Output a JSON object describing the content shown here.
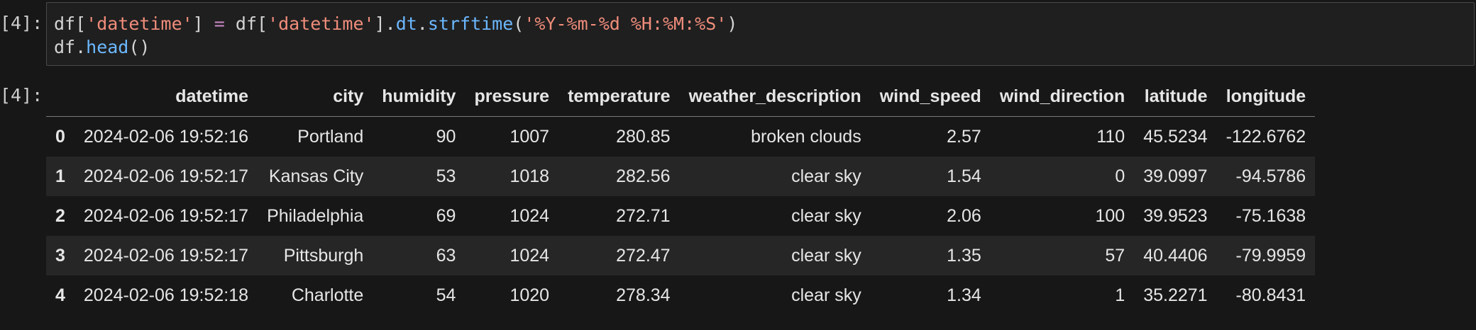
{
  "cell": {
    "input_prompt": "[4]:",
    "output_prompt": "[4]:",
    "code_line1": {
      "t1": "df[",
      "t2": "'datetime'",
      "t3": "] ",
      "t4": "=",
      "t5": " df[",
      "t6": "'datetime'",
      "t7": "].",
      "t8": "dt",
      "t9": ".",
      "t10": "strftime",
      "t11": "(",
      "t12": "'%Y-%m-%d %H:%M:%S'",
      "t13": ")"
    },
    "code_line2": {
      "t1": "df.",
      "t2": "head",
      "t3": "()"
    }
  },
  "table": {
    "columns": [
      "",
      "datetime",
      "city",
      "humidity",
      "pressure",
      "temperature",
      "weather_description",
      "wind_speed",
      "wind_direction",
      "latitude",
      "longitude"
    ],
    "rows": [
      [
        "0",
        "2024-02-06 19:52:16",
        "Portland",
        "90",
        "1007",
        "280.85",
        "broken clouds",
        "2.57",
        "110",
        "45.5234",
        "-122.6762"
      ],
      [
        "1",
        "2024-02-06 19:52:17",
        "Kansas City",
        "53",
        "1018",
        "282.56",
        "clear sky",
        "1.54",
        "0",
        "39.0997",
        "-94.5786"
      ],
      [
        "2",
        "2024-02-06 19:52:17",
        "Philadelphia",
        "69",
        "1024",
        "272.71",
        "clear sky",
        "2.06",
        "100",
        "39.9523",
        "-75.1638"
      ],
      [
        "3",
        "2024-02-06 19:52:17",
        "Pittsburgh",
        "63",
        "1024",
        "272.47",
        "clear sky",
        "1.35",
        "57",
        "40.4406",
        "-79.9959"
      ],
      [
        "4",
        "2024-02-06 19:52:18",
        "Charlotte",
        "54",
        "1020",
        "278.34",
        "clear sky",
        "1.34",
        "1",
        "35.2271",
        "-80.8431"
      ]
    ]
  }
}
